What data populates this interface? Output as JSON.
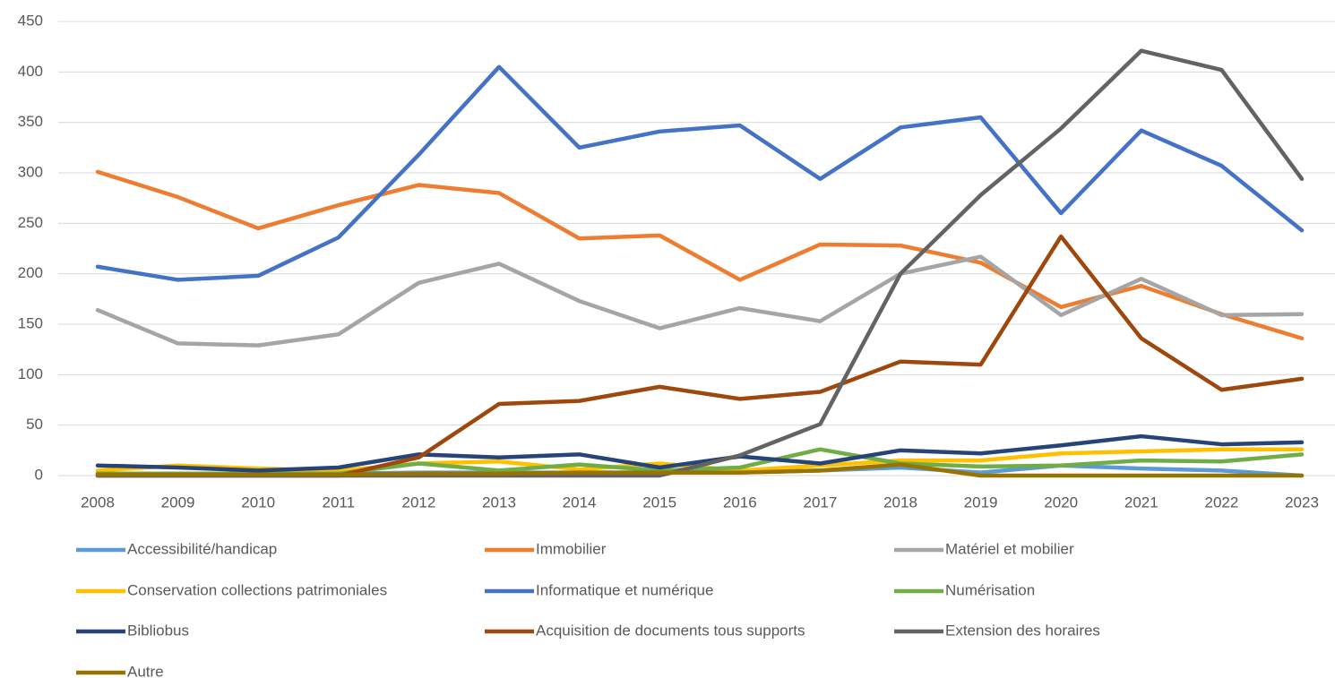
{
  "chart_data": {
    "type": "line",
    "categories": [
      "2008",
      "2009",
      "2010",
      "2011",
      "2012",
      "2013",
      "2014",
      "2015",
      "2016",
      "2017",
      "2018",
      "2019",
      "2020",
      "2021",
      "2022",
      "2023"
    ],
    "ylim": [
      0,
      450
    ],
    "yticks": [
      0,
      50,
      100,
      150,
      200,
      250,
      300,
      350,
      400,
      450
    ],
    "grid": true,
    "legend": "bottom",
    "series": [
      {
        "name": "Accessibilité/handicap",
        "color": "#5b9bd5",
        "values": [
          2,
          2,
          2,
          2,
          3,
          3,
          3,
          3,
          3,
          5,
          8,
          3,
          10,
          7,
          5,
          0
        ]
      },
      {
        "name": "Immobilier",
        "color": "#ed7d31",
        "values": [
          301,
          276,
          245,
          268,
          288,
          280,
          235,
          238,
          194,
          229,
          228,
          211,
          167,
          188,
          160,
          136
        ]
      },
      {
        "name": "Matériel et mobilier",
        "color": "#a5a5a5",
        "values": [
          164,
          131,
          129,
          140,
          191,
          210,
          173,
          146,
          166,
          153,
          200,
          217,
          159,
          195,
          159,
          160
        ]
      },
      {
        "name": "Conservation collections patrimoniales",
        "color": "#ffc000",
        "values": [
          5,
          10,
          7,
          5,
          12,
          14,
          6,
          12,
          5,
          10,
          15,
          15,
          22,
          24,
          26,
          26
        ]
      },
      {
        "name": "Informatique et numérique",
        "color": "#4472c4",
        "values": [
          207,
          194,
          198,
          236,
          318,
          405,
          325,
          341,
          347,
          294,
          345,
          355,
          260,
          342,
          307,
          243
        ]
      },
      {
        "name": "Numérisation",
        "color": "#70ad47",
        "values": [
          2,
          2,
          2,
          2,
          12,
          5,
          11,
          5,
          8,
          26,
          12,
          9,
          10,
          15,
          14,
          21
        ]
      },
      {
        "name": "Bibliobus",
        "color": "#264478",
        "values": [
          10,
          8,
          5,
          8,
          21,
          18,
          21,
          8,
          19,
          12,
          25,
          22,
          30,
          39,
          31,
          33
        ]
      },
      {
        "name": "Acquisition de documents tous supports",
        "color": "#9e480e",
        "values": [
          0,
          0,
          0,
          0,
          18,
          71,
          74,
          88,
          76,
          83,
          113,
          110,
          237,
          136,
          85,
          96
        ]
      },
      {
        "name": "Extension des horaires",
        "color": "#636363",
        "values": [
          0,
          0,
          0,
          0,
          0,
          0,
          0,
          0,
          20,
          51,
          200,
          278,
          344,
          421,
          402,
          294
        ]
      },
      {
        "name": "Autre",
        "color": "#997300",
        "values": [
          1,
          1,
          1,
          1,
          2,
          2,
          3,
          3,
          3,
          5,
          11,
          0,
          0,
          0,
          0,
          0
        ]
      }
    ]
  }
}
